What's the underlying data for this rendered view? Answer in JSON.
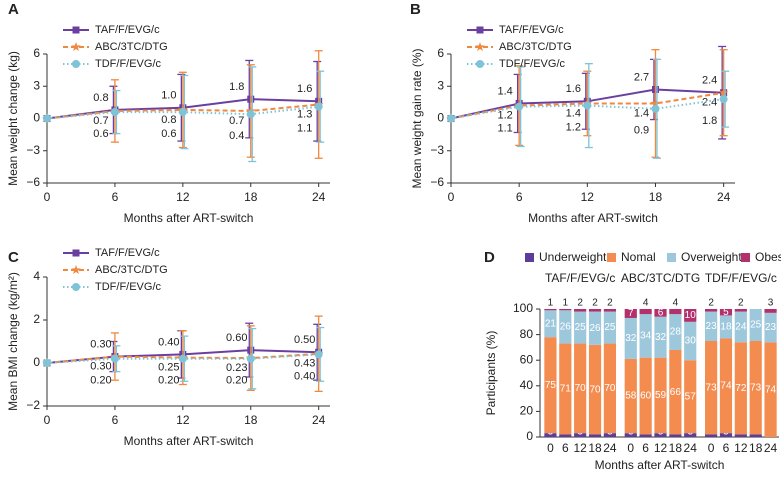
{
  "chart_data": [
    {
      "type": "line",
      "title": "A",
      "xlabel": "Months after ART-switch",
      "ylabel": "Mean weight change (kg)",
      "x": [
        0,
        6,
        12,
        18,
        24
      ],
      "xlim": [
        0,
        25
      ],
      "xticks": [
        0,
        6,
        12,
        18,
        24
      ],
      "ylim": [
        -6,
        6
      ],
      "yticks": [
        {
          "value": -6,
          "label": "−6"
        },
        {
          "value": -3,
          "label": "−3"
        },
        0,
        3,
        6
      ],
      "legend": "upper left",
      "series": [
        {
          "name": "TAF/F/EVG/c",
          "color": "#6b3fa0",
          "linestyle": "solid",
          "marker": "square",
          "values": [
            0,
            0.8,
            1.0,
            1.8,
            1.6
          ],
          "errors": [
            0,
            2.2,
            3.1,
            3.6,
            3.7
          ],
          "value_labels": [
            null,
            "0.8",
            "1.0",
            "1.8",
            "1.6"
          ]
        },
        {
          "name": "ABC/3TC/DTG",
          "color": "#f0883e",
          "linestyle": "dash",
          "marker": "star",
          "values": [
            0,
            0.7,
            0.8,
            0.7,
            1.3
          ],
          "errors": [
            0,
            2.9,
            3.5,
            4.3,
            5.0
          ],
          "value_labels": [
            null,
            "0.7",
            "0.8",
            "0.7",
            "1.3"
          ]
        },
        {
          "name": "TDF/F/EVG/c",
          "color": "#7ec3d6",
          "linestyle": "dot",
          "marker": "circle",
          "values": [
            0,
            0.6,
            0.6,
            0.4,
            1.1
          ],
          "errors": [
            0,
            2.0,
            3.4,
            4.4,
            3.3
          ],
          "value_labels": [
            null,
            "0.6",
            "0.6",
            "0.4",
            "1.1"
          ]
        }
      ]
    },
    {
      "type": "line",
      "title": "B",
      "xlabel": "Months after ART-switch",
      "ylabel": "Mean weight gain rate (%)",
      "x": [
        0,
        6,
        12,
        18,
        24
      ],
      "xlim": [
        0,
        25
      ],
      "xticks": [
        0,
        6,
        12,
        18,
        24
      ],
      "ylim": [
        -6,
        6
      ],
      "yticks": [
        {
          "value": -6,
          "label": "−6"
        },
        {
          "value": -3,
          "label": "−3"
        },
        0,
        3,
        6
      ],
      "legend": "upper left",
      "series": [
        {
          "name": "TAF/F/EVG/c",
          "color": "#6b3fa0",
          "linestyle": "solid",
          "marker": "square",
          "values": [
            0,
            1.4,
            1.6,
            2.7,
            2.4
          ],
          "errors": [
            0,
            2.7,
            2.6,
            2.8,
            4.3
          ],
          "value_labels": [
            null,
            "1.4",
            "1.6",
            "2.7",
            "2.4"
          ]
        },
        {
          "name": "ABC/3TC/DTG",
          "color": "#f0883e",
          "linestyle": "dash",
          "marker": "star",
          "values": [
            0,
            1.2,
            1.4,
            1.4,
            2.4
          ],
          "errors": [
            0,
            3.7,
            3.0,
            5.0,
            4.0
          ],
          "value_labels": [
            null,
            "1.2",
            "1.4",
            "1.4",
            "2.4"
          ]
        },
        {
          "name": "TDF/F/EVG/c",
          "color": "#7ec3d6",
          "linestyle": "dot",
          "marker": "circle",
          "values": [
            0,
            1.1,
            1.2,
            0.9,
            1.8
          ],
          "errors": [
            0,
            3.7,
            3.9,
            4.6,
            2.6
          ],
          "value_labels": [
            null,
            "1.1",
            "1.2",
            "0.9",
            "1.8"
          ]
        }
      ]
    },
    {
      "type": "line",
      "title": "C",
      "xlabel": "Months after ART-switch",
      "ylabel": "Mean BMI change (kg/m²)",
      "x": [
        0,
        6,
        12,
        18,
        24
      ],
      "xlim": [
        0,
        25
      ],
      "xticks": [
        0,
        6,
        12,
        18,
        24
      ],
      "ylim": [
        -2,
        4
      ],
      "yticks": [
        {
          "value": -2,
          "label": "−2"
        },
        0,
        2,
        4
      ],
      "legend": "upper left",
      "series": [
        {
          "name": "TAF/F/EVG/c",
          "color": "#6b3fa0",
          "linestyle": "solid",
          "marker": "square",
          "values": [
            0,
            0.3,
            0.4,
            0.6,
            0.5
          ],
          "errors": [
            0,
            0.7,
            1.1,
            1.25,
            1.3
          ],
          "value_labels": [
            null,
            "0.30",
            "0.40",
            "0.60",
            "0.50"
          ]
        },
        {
          "name": "ABC/3TC/DTG",
          "color": "#f0883e",
          "linestyle": "dash",
          "marker": "star",
          "values": [
            0,
            0.3,
            0.25,
            0.23,
            0.43
          ],
          "errors": [
            0,
            1.1,
            1.25,
            1.5,
            1.75
          ],
          "value_labels": [
            null,
            "0.30",
            "0.25",
            "0.23",
            "0.43"
          ]
        },
        {
          "name": "TDF/F/EVG/c",
          "color": "#7ec3d6",
          "linestyle": "dot",
          "marker": "circle",
          "values": [
            0,
            0.2,
            0.2,
            0.2,
            0.4
          ],
          "errors": [
            0,
            0.6,
            1.05,
            1.4,
            1.25
          ],
          "value_labels": [
            null,
            "0.20",
            "0.20",
            "0.20",
            "0.40"
          ]
        }
      ]
    },
    {
      "type": "stacked_bar",
      "title": "D",
      "xlabel": "Months after ART-switch",
      "ylabel": "Participants (%)",
      "groups": [
        "TAF/F/EVG/c",
        "ABC/3TC/DTG",
        "TDF/F/EVG/c"
      ],
      "categories": [
        "0",
        "6",
        "12",
        "18",
        "24",
        "0",
        "6",
        "12",
        "18",
        "24",
        "0",
        "6",
        "12",
        "18",
        "24"
      ],
      "ylim": [
        0,
        100
      ],
      "yticks": [
        0,
        20,
        40,
        60,
        80,
        100
      ],
      "legend": "upper center",
      "series": [
        {
          "name": "Underweight",
          "color": "#5e3c99",
          "values": [
            3,
            2,
            3,
            2,
            3,
            3,
            2,
            3,
            2,
            3,
            2,
            3,
            2,
            2,
            0
          ]
        },
        {
          "name": "Nomal",
          "color": "#f48c4f",
          "values": [
            75,
            71,
            70,
            70,
            70,
            58,
            60,
            59,
            66,
            57,
            73,
            74,
            72,
            73,
            74
          ]
        },
        {
          "name": "Overweight",
          "color": "#9dc8dc",
          "values": [
            21,
            26,
            25,
            26,
            25,
            32,
            34,
            32,
            28,
            30,
            23,
            18,
            24,
            25,
            23
          ]
        },
        {
          "name": "Obese",
          "color": "#b2306b",
          "values": [
            1,
            1,
            2,
            2,
            2,
            7,
            4,
            6,
            4,
            10,
            2,
            5,
            2,
            0,
            3
          ]
        }
      ]
    }
  ]
}
